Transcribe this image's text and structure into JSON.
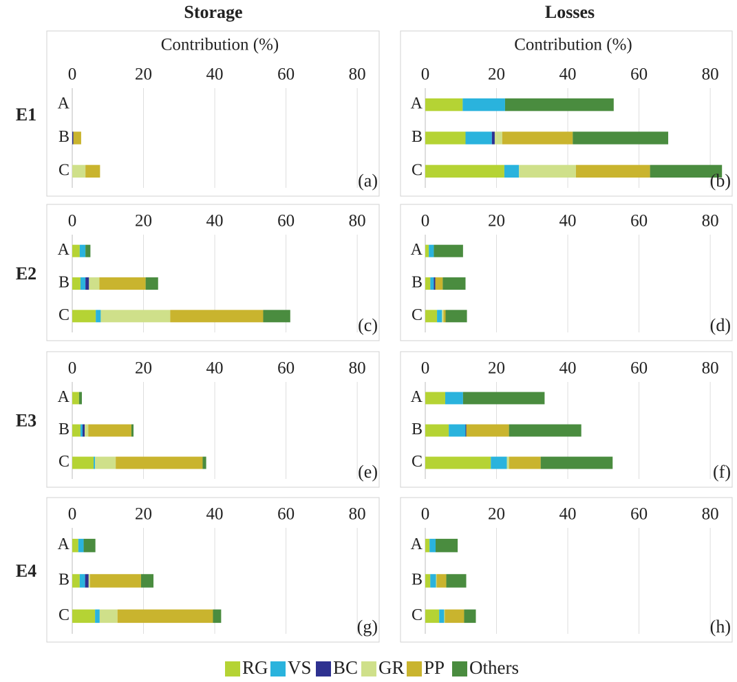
{
  "columns": [
    "Storage",
    "Losses"
  ],
  "rows": [
    "E1",
    "E2",
    "E3",
    "E4"
  ],
  "legend": [
    {
      "name": "RG",
      "color": "#b5d334"
    },
    {
      "name": "VS",
      "color": "#2ab3dd"
    },
    {
      "name": "BC",
      "color": "#2e3190"
    },
    {
      "name": "GR",
      "color": "#cfe08a"
    },
    {
      "name": "PP",
      "color": "#c9b42e"
    },
    {
      "name": "Others",
      "color": "#4a8c3f"
    }
  ],
  "chart_data": [
    {
      "type": "bar",
      "orientation": "horizontal",
      "xlabel": "Contribution (%)",
      "panel": "(a)",
      "categories": [
        "A",
        "B",
        "C"
      ],
      "xlim": [
        0,
        85
      ],
      "xticks": [
        0,
        20,
        40,
        60,
        80
      ],
      "grid": true,
      "series": [
        {
          "values": [
            0,
            0,
            0
          ]
        },
        {
          "values": [
            0,
            0,
            0
          ]
        },
        {
          "values": [
            0,
            0.3,
            0
          ]
        },
        {
          "values": [
            0,
            0,
            3.7
          ]
        },
        {
          "values": [
            0,
            2.2,
            4.1
          ]
        },
        {
          "values": [
            0,
            0,
            0
          ]
        }
      ]
    },
    {
      "type": "bar",
      "orientation": "horizontal",
      "xlabel": "Contribution (%)",
      "panel": "(b)",
      "categories": [
        "A",
        "B",
        "C"
      ],
      "xlim": [
        0,
        85
      ],
      "xticks": [
        0,
        20,
        40,
        60,
        80
      ],
      "grid": true,
      "series": [
        {
          "values": [
            10.5,
            11.3,
            22.2
          ]
        },
        {
          "values": [
            11.9,
            7.4,
            4.1
          ]
        },
        {
          "values": [
            0,
            0.8,
            0
          ]
        },
        {
          "values": [
            0,
            2.1,
            16
          ]
        },
        {
          "values": [
            0,
            19.8,
            20.8
          ]
        },
        {
          "values": [
            30.5,
            26.8,
            20.2
          ]
        }
      ]
    },
    {
      "type": "bar",
      "orientation": "horizontal",
      "panel": "(c)",
      "categories": [
        "A",
        "B",
        "C"
      ],
      "xlim": [
        0,
        85
      ],
      "xticks": [
        0,
        20,
        40,
        60,
        80
      ],
      "grid": true,
      "series": [
        {
          "values": [
            2.1,
            2.3,
            6.6
          ]
        },
        {
          "values": [
            1.6,
            1.4,
            1.4
          ]
        },
        {
          "values": [
            0,
            1.0,
            0
          ]
        },
        {
          "values": [
            0,
            2.9,
            19.5
          ]
        },
        {
          "values": [
            0,
            13,
            26.1
          ]
        },
        {
          "values": [
            1.4,
            3.5,
            7.6
          ]
        }
      ]
    },
    {
      "type": "bar",
      "orientation": "horizontal",
      "panel": "(d)",
      "categories": [
        "A",
        "B",
        "C"
      ],
      "xlim": [
        0,
        85
      ],
      "xticks": [
        0,
        20,
        40,
        60,
        80
      ],
      "grid": true,
      "series": [
        {
          "values": [
            1.0,
            1.4,
            3.3
          ]
        },
        {
          "values": [
            1.4,
            1.0,
            1.4
          ]
        },
        {
          "values": [
            0,
            0.4,
            0
          ]
        },
        {
          "values": [
            0,
            0,
            0.4
          ]
        },
        {
          "values": [
            0,
            2.1,
            0.6
          ]
        },
        {
          "values": [
            8.2,
            6.4,
            6.0
          ]
        }
      ]
    },
    {
      "type": "bar",
      "orientation": "horizontal",
      "panel": "(e)",
      "categories": [
        "A",
        "B",
        "C"
      ],
      "xlim": [
        0,
        85
      ],
      "xticks": [
        0,
        20,
        40,
        60,
        80
      ],
      "grid": true,
      "series": [
        {
          "values": [
            1.9,
            2.3,
            6.0
          ]
        },
        {
          "values": [
            0,
            0.6,
            0.4
          ]
        },
        {
          "values": [
            0,
            0.6,
            0
          ]
        },
        {
          "values": [
            0,
            1.0,
            5.8
          ]
        },
        {
          "values": [
            0,
            12.1,
            24.4
          ]
        },
        {
          "values": [
            0.8,
            0.6,
            1.0
          ]
        }
      ]
    },
    {
      "type": "bar",
      "orientation": "horizontal",
      "panel": "(f)",
      "categories": [
        "A",
        "B",
        "C"
      ],
      "xlim": [
        0,
        85
      ],
      "xticks": [
        0,
        20,
        40,
        60,
        80
      ],
      "grid": true,
      "series": [
        {
          "values": [
            5.6,
            6.6,
            18.4
          ]
        },
        {
          "values": [
            5.0,
            4.7,
            4.5
          ]
        },
        {
          "values": [
            0,
            0.2,
            0
          ]
        },
        {
          "values": [
            0,
            0,
            0.6
          ]
        },
        {
          "values": [
            0,
            12.0,
            8.9
          ]
        },
        {
          "values": [
            22.9,
            20.3,
            20.2
          ]
        }
      ]
    },
    {
      "type": "bar",
      "orientation": "horizontal",
      "panel": "(g)",
      "categories": [
        "A",
        "B",
        "C"
      ],
      "xlim": [
        0,
        85
      ],
      "xticks": [
        0,
        20,
        40,
        60,
        80
      ],
      "grid": true,
      "series": [
        {
          "values": [
            1.7,
            2.1,
            6.4
          ]
        },
        {
          "values": [
            1.5,
            1.5,
            1.3
          ]
        },
        {
          "values": [
            0,
            1.0,
            0
          ]
        },
        {
          "values": [
            0,
            0.4,
            5.0
          ]
        },
        {
          "values": [
            0,
            14.3,
            26.8
          ]
        },
        {
          "values": [
            3.3,
            3.5,
            2.3
          ]
        }
      ]
    },
    {
      "type": "bar",
      "orientation": "horizontal",
      "panel": "(h)",
      "categories": [
        "A",
        "B",
        "C"
      ],
      "xlim": [
        0,
        85
      ],
      "xticks": [
        0,
        20,
        40,
        60,
        80
      ],
      "grid": true,
      "series": [
        {
          "values": [
            1.2,
            1.4,
            3.9
          ]
        },
        {
          "values": [
            1.7,
            1.6,
            1.4
          ]
        },
        {
          "values": [
            0,
            0,
            0
          ]
        },
        {
          "values": [
            0,
            0.2,
            0.2
          ]
        },
        {
          "values": [
            0,
            2.7,
            5.4
          ]
        },
        {
          "values": [
            6.2,
            5.6,
            3.3
          ]
        }
      ]
    }
  ]
}
